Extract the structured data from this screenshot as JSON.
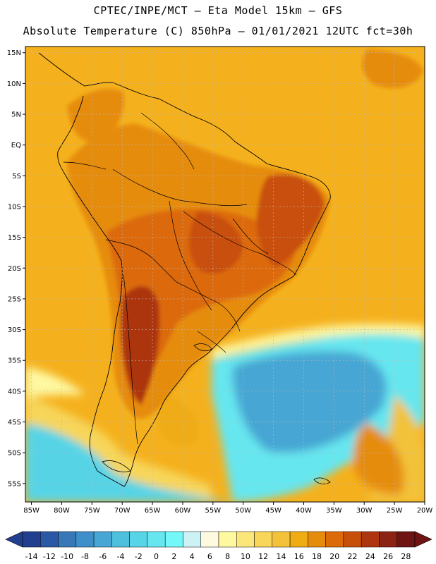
{
  "header": {
    "line1": "CPTEC/INPE/MCT –  Eta Model 15km – GFS",
    "line2": "Absolute Temperature (C) 850hPa – 01/01/2021 12UTC fct=30h"
  },
  "map": {
    "region": "South America",
    "lat_ticks": [
      "15N",
      "10N",
      "5N",
      "EQ",
      "5S",
      "10S",
      "15S",
      "20S",
      "25S",
      "30S",
      "35S",
      "40S",
      "45S",
      "50S",
      "55S"
    ],
    "lon_ticks": [
      "85W",
      "80W",
      "75W",
      "70W",
      "65W",
      "60W",
      "55W",
      "50W",
      "45W",
      "40W",
      "35W",
      "30W",
      "25W",
      "20W"
    ],
    "lon_range": [
      -86,
      -20
    ],
    "lat_range": [
      -58,
      16
    ],
    "background_color": "#f5b11d"
  },
  "colorbar": {
    "labels": [
      "-14",
      "-12",
      "-10",
      "-8",
      "-6",
      "-4",
      "-2",
      "0",
      "2",
      "4",
      "6",
      "8",
      "10",
      "12",
      "14",
      "16",
      "18",
      "20",
      "22",
      "24",
      "26",
      "28"
    ],
    "colors": [
      "#213f8e",
      "#2b58a4",
      "#3877b8",
      "#3f8fc8",
      "#47a6d3",
      "#4cc0dd",
      "#57d4e6",
      "#66e6ef",
      "#73f7f8",
      "#cdf2f6",
      "#fefae0",
      "#fef8a0",
      "#fbe67a",
      "#f7d65a",
      "#f3c23a",
      "#f0ac14",
      "#e68c0c",
      "#dc6a08",
      "#c84f0a",
      "#ad3510",
      "#8c2414",
      "#6e1412"
    ]
  }
}
